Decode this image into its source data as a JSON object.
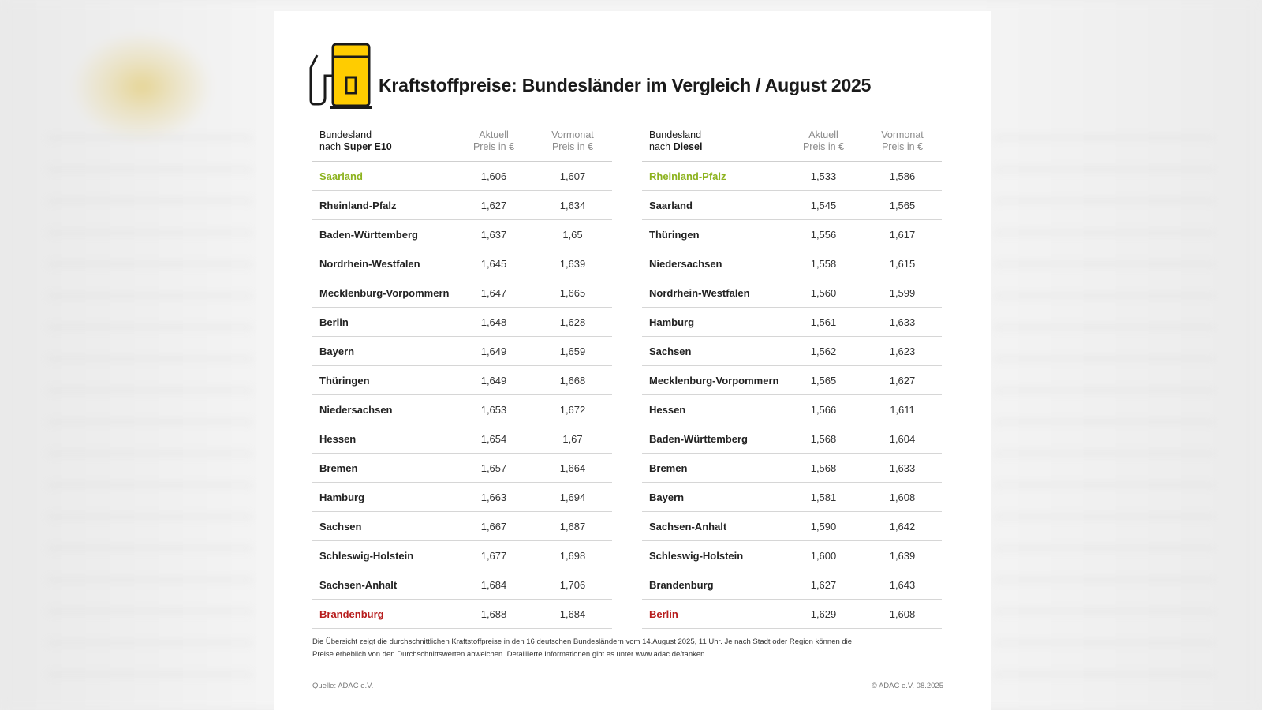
{
  "title": "Kraftstoffpreise: Bundesländer im Vergleich / August 2025",
  "colors": {
    "best": "#8db31f",
    "worst": "#b71c1c",
    "pump_yellow": "#ffcc00"
  },
  "icon": "fuel-pump-icon",
  "super_e10": {
    "headers": {
      "land_line1": "Bundesland",
      "land_line2_prefix": "nach ",
      "land_line2_bold": "Super E10",
      "aktuell_line1": "Aktuell",
      "aktuell_line2": "Preis in €",
      "vormonat_line1": "Vormonat",
      "vormonat_line2": "Preis in €"
    },
    "rows": [
      {
        "name": "Saarland",
        "aktuell": "1,606",
        "vormonat": "1,607",
        "status": "best"
      },
      {
        "name": "Rheinland-Pfalz",
        "aktuell": "1,627",
        "vormonat": "1,634",
        "status": ""
      },
      {
        "name": "Baden-Württemberg",
        "aktuell": "1,637",
        "vormonat": "1,65",
        "status": ""
      },
      {
        "name": "Nordrhein-Westfalen",
        "aktuell": "1,645",
        "vormonat": "1,639",
        "status": ""
      },
      {
        "name": "Mecklenburg-Vorpommern",
        "aktuell": "1,647",
        "vormonat": "1,665",
        "status": ""
      },
      {
        "name": "Berlin",
        "aktuell": "1,648",
        "vormonat": "1,628",
        "status": ""
      },
      {
        "name": "Bayern",
        "aktuell": "1,649",
        "vormonat": "1,659",
        "status": ""
      },
      {
        "name": "Thüringen",
        "aktuell": "1,649",
        "vormonat": "1,668",
        "status": ""
      },
      {
        "name": "Niedersachsen",
        "aktuell": "1,653",
        "vormonat": "1,672",
        "status": ""
      },
      {
        "name": "Hessen",
        "aktuell": "1,654",
        "vormonat": "1,67",
        "status": ""
      },
      {
        "name": "Bremen",
        "aktuell": "1,657",
        "vormonat": "1,664",
        "status": ""
      },
      {
        "name": "Hamburg",
        "aktuell": "1,663",
        "vormonat": "1,694",
        "status": ""
      },
      {
        "name": "Sachsen",
        "aktuell": "1,667",
        "vormonat": "1,687",
        "status": ""
      },
      {
        "name": "Schleswig-Holstein",
        "aktuell": "1,677",
        "vormonat": "1,698",
        "status": ""
      },
      {
        "name": "Sachsen-Anhalt",
        "aktuell": "1,684",
        "vormonat": "1,706",
        "status": ""
      },
      {
        "name": "Brandenburg",
        "aktuell": "1,688",
        "vormonat": "1,684",
        "status": "worst"
      }
    ]
  },
  "diesel": {
    "headers": {
      "land_line1": "Bundesland",
      "land_line2_prefix": "nach ",
      "land_line2_bold": "Diesel",
      "aktuell_line1": "Aktuell",
      "aktuell_line2": "Preis in €",
      "vormonat_line1": "Vormonat",
      "vormonat_line2": "Preis in €"
    },
    "rows": [
      {
        "name": "Rheinland-Pfalz",
        "aktuell": "1,533",
        "vormonat": "1,586",
        "status": "best"
      },
      {
        "name": "Saarland",
        "aktuell": "1,545",
        "vormonat": "1,565",
        "status": ""
      },
      {
        "name": "Thüringen",
        "aktuell": "1,556",
        "vormonat": "1,617",
        "status": ""
      },
      {
        "name": "Niedersachsen",
        "aktuell": "1,558",
        "vormonat": "1,615",
        "status": ""
      },
      {
        "name": "Nordrhein-Westfalen",
        "aktuell": "1,560",
        "vormonat": "1,599",
        "status": ""
      },
      {
        "name": "Hamburg",
        "aktuell": "1,561",
        "vormonat": "1,633",
        "status": ""
      },
      {
        "name": "Sachsen",
        "aktuell": "1,562",
        "vormonat": "1,623",
        "status": ""
      },
      {
        "name": "Mecklenburg-Vorpommern",
        "aktuell": "1,565",
        "vormonat": "1,627",
        "status": ""
      },
      {
        "name": "Hessen",
        "aktuell": "1,566",
        "vormonat": "1,611",
        "status": ""
      },
      {
        "name": "Baden-Württemberg",
        "aktuell": "1,568",
        "vormonat": "1,604",
        "status": ""
      },
      {
        "name": "Bremen",
        "aktuell": "1,568",
        "vormonat": "1,633",
        "status": ""
      },
      {
        "name": "Bayern",
        "aktuell": "1,581",
        "vormonat": "1,608",
        "status": ""
      },
      {
        "name": "Sachsen-Anhalt",
        "aktuell": "1,590",
        "vormonat": "1,642",
        "status": ""
      },
      {
        "name": "Schleswig-Holstein",
        "aktuell": "1,600",
        "vormonat": "1,639",
        "status": ""
      },
      {
        "name": "Brandenburg",
        "aktuell": "1,627",
        "vormonat": "1,643",
        "status": ""
      },
      {
        "name": "Berlin",
        "aktuell": "1,629",
        "vormonat": "1,608",
        "status": "worst"
      }
    ]
  },
  "footnote": {
    "line1": "Die Übersicht zeigt die durchschnittlichen Kraftstoffpreise in den 16 deutschen Bundesländern vom 14.August 2025, 11 Uhr. Je nach Stadt oder Region können die",
    "line2": "Preise erheblich von den Durchschnittswerten abweichen. Detaillierte Informationen gibt es unter www.adac.de/tanken."
  },
  "source": "Quelle: ADAC e.V.",
  "copyright": "© ADAC e.V. 08.2025"
}
